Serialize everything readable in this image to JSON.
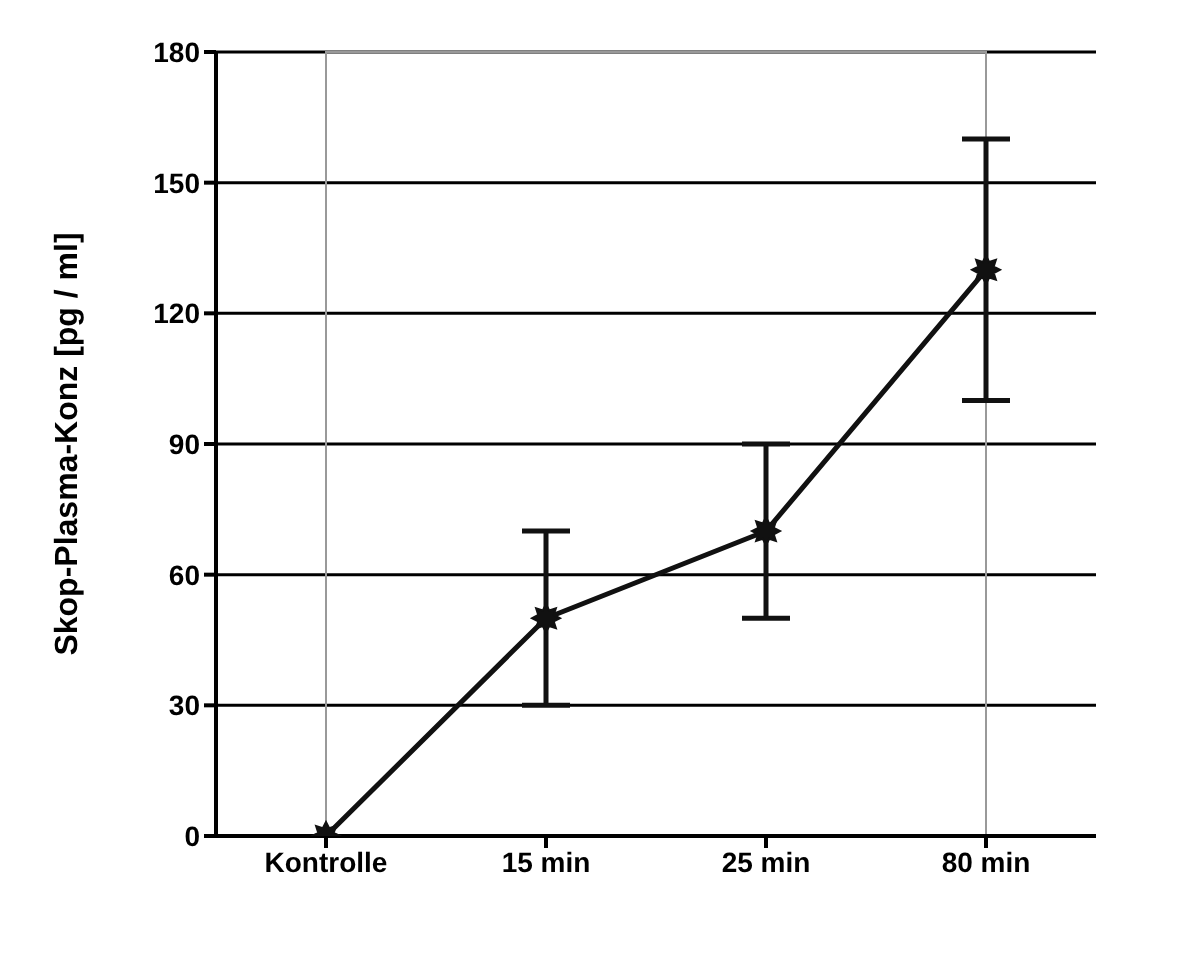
{
  "chart_data": {
    "type": "line",
    "ylabel": "Skop-Plasma-Konz  [pg / ml]",
    "categories": [
      "Kontrolle",
      "15 min",
      "25 min",
      "80 min"
    ],
    "values": [
      0,
      50,
      70,
      130
    ],
    "errors": [
      null,
      20,
      20,
      30
    ],
    "color": "#111111",
    "marker": "star",
    "line_style": "solid",
    "ylim": [
      0,
      180
    ],
    "yticks": [
      0,
      30,
      60,
      90,
      120,
      150,
      180
    ],
    "grid": "y"
  }
}
